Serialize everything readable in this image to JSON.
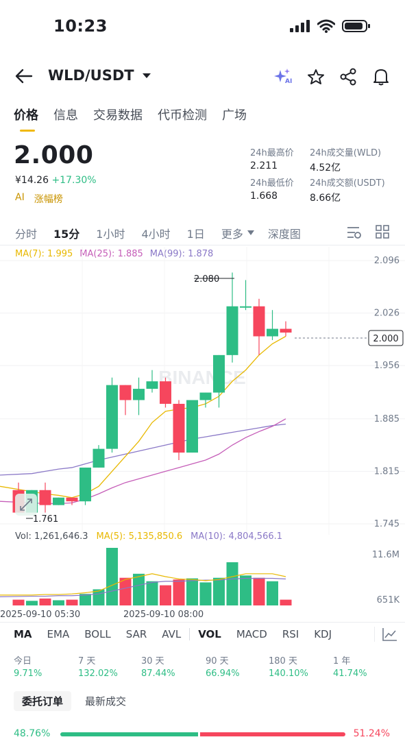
{
  "status_bar": {
    "time": "10:23"
  },
  "header": {
    "pair": "WLD/USDT",
    "back_icon": "arrow-left-icon",
    "dropdown_icon": "caret-down-icon",
    "actions": [
      "ai-sparkle-icon",
      "star-icon",
      "share-icon",
      "bell-icon"
    ],
    "ai_badge": "AI"
  },
  "tabs": [
    "价格",
    "信息",
    "交易数据",
    "代币检测",
    "广场"
  ],
  "price": {
    "last": "2.000",
    "cny": "¥14.26",
    "change": "+17.30%",
    "ai_label": "AI",
    "rank_label": "涨幅榜"
  },
  "stats": {
    "high_label": "24h最高价",
    "high": "2.211",
    "vol_label": "24h成交量(WLD)",
    "vol": "4.52亿",
    "low_label": "24h最低价",
    "low": "1.668",
    "amount_label": "24h成交额(USDT)",
    "amount": "8.66亿"
  },
  "time_tabs": [
    "分时",
    "15分",
    "1小时",
    "4小时",
    "1日",
    "更多",
    "深度图"
  ],
  "ma": {
    "ma7": "MA(7): 1.995",
    "ma25": "MA(25): 1.885",
    "ma99": "MA(99): 1.878"
  },
  "chart_data": {
    "type": "candlestick",
    "y_axis": [
      "2.096",
      "2.026",
      "1.956",
      "1.885",
      "1.815",
      "1.745"
    ],
    "ylim": [
      1.745,
      2.096
    ],
    "current_price_label": "2.000",
    "high_marker": "2.080",
    "low_marker": "1.761",
    "watermark": "BINANCE",
    "x_labels": [
      "2025-09-10 05:30",
      "2025-09-10 08:00"
    ],
    "candles": [
      {
        "o": 1.79,
        "h": 1.8,
        "l": 1.76,
        "c": 1.76
      },
      {
        "o": 1.76,
        "h": 1.79,
        "l": 1.76,
        "c": 1.79
      },
      {
        "o": 1.79,
        "h": 1.8,
        "l": 1.76,
        "c": 1.77
      },
      {
        "o": 1.77,
        "h": 1.78,
        "l": 1.77,
        "c": 1.78
      },
      {
        "o": 1.78,
        "h": 1.78,
        "l": 1.77,
        "c": 1.775
      },
      {
        "o": 1.775,
        "h": 1.82,
        "l": 1.77,
        "c": 1.82
      },
      {
        "o": 1.82,
        "h": 1.85,
        "l": 1.82,
        "c": 1.845
      },
      {
        "o": 1.845,
        "h": 1.94,
        "l": 1.84,
        "c": 1.93
      },
      {
        "o": 1.93,
        "h": 1.93,
        "l": 1.89,
        "c": 1.91
      },
      {
        "o": 1.91,
        "h": 1.94,
        "l": 1.89,
        "c": 1.925
      },
      {
        "o": 1.925,
        "h": 1.95,
        "l": 1.92,
        "c": 1.935
      },
      {
        "o": 1.935,
        "h": 1.94,
        "l": 1.9,
        "c": 1.905
      },
      {
        "o": 1.905,
        "h": 1.91,
        "l": 1.83,
        "c": 1.84
      },
      {
        "o": 1.84,
        "h": 1.91,
        "l": 1.84,
        "c": 1.91
      },
      {
        "o": 1.91,
        "h": 1.92,
        "l": 1.9,
        "c": 1.92
      },
      {
        "o": 1.92,
        "h": 1.97,
        "l": 1.9,
        "c": 1.97
      },
      {
        "o": 1.97,
        "h": 2.08,
        "l": 1.96,
        "c": 2.035
      },
      {
        "o": 2.035,
        "h": 2.07,
        "l": 2.03,
        "c": 2.035
      },
      {
        "o": 2.035,
        "h": 2.045,
        "l": 1.97,
        "c": 1.995
      },
      {
        "o": 1.995,
        "h": 2.03,
        "l": 1.99,
        "c": 2.005
      },
      {
        "o": 2.005,
        "h": 2.015,
        "l": 1.995,
        "c": 2.0
      }
    ],
    "ma7": [
      1.795,
      1.788,
      1.785,
      1.783,
      1.78,
      1.785,
      1.795,
      1.815,
      1.835,
      1.855,
      1.88,
      1.895,
      1.898,
      1.9,
      1.905,
      1.915,
      1.935,
      1.95,
      1.97,
      1.985,
      1.995
    ],
    "ma25": [
      1.775,
      1.773,
      1.772,
      1.772,
      1.773,
      1.778,
      1.785,
      1.793,
      1.8,
      1.805,
      1.81,
      1.815,
      1.82,
      1.825,
      1.83,
      1.838,
      1.85,
      1.86,
      1.868,
      1.875,
      1.885
    ],
    "ma99": [
      1.81,
      1.812,
      1.815,
      1.818,
      1.82,
      1.825,
      1.83,
      1.834,
      1.838,
      1.842,
      1.846,
      1.85,
      1.854,
      1.858,
      1.861,
      1.864,
      1.867,
      1.87,
      1.873,
      1.876,
      1.878
    ]
  },
  "volume": {
    "vol_label": "Vol: 1,261,646.3",
    "ma5_label": "MA(5): 5,135,850.6",
    "ma10_label": "MA(10): 4,804,566.1",
    "y_top": "11.6M",
    "y_bottom": "651K",
    "bars": [
      0.1,
      0.08,
      0.12,
      0.09,
      0.1,
      0.2,
      0.28,
      1.0,
      0.48,
      0.55,
      0.42,
      0.35,
      0.45,
      0.47,
      0.4,
      0.48,
      0.75,
      0.52,
      0.48,
      0.42,
      0.1
    ],
    "ma5": [
      0.18,
      0.18,
      0.19,
      0.19,
      0.2,
      0.22,
      0.25,
      0.35,
      0.45,
      0.5,
      0.55,
      0.5,
      0.46,
      0.45,
      0.43,
      0.45,
      0.5,
      0.55,
      0.55,
      0.55,
      0.5
    ],
    "ma10": [
      0.15,
      0.16,
      0.16,
      0.17,
      0.17,
      0.18,
      0.2,
      0.25,
      0.3,
      0.35,
      0.4,
      0.42,
      0.42,
      0.43,
      0.44,
      0.44,
      0.46,
      0.47,
      0.47,
      0.47,
      0.46
    ]
  },
  "indicator_tabs": [
    "MA",
    "EMA",
    "BOLL",
    "SAR",
    "AVL",
    "VOL",
    "MACD",
    "RSI",
    "KDJ"
  ],
  "performance": [
    {
      "label": "今日",
      "value": "9.71%"
    },
    {
      "label": "7 天",
      "value": "132.02%"
    },
    {
      "label": "30 天",
      "value": "87.44%"
    },
    {
      "label": "90 天",
      "value": "66.94%"
    },
    {
      "label": "180 天",
      "value": "140.10%"
    },
    {
      "label": "1 年",
      "value": "41.74%"
    }
  ],
  "order_tabs": [
    "委托订单",
    "最新成交"
  ],
  "order_ratio": {
    "buy": "48.76%",
    "sell": "51.24%",
    "buy_fraction": 0.4876
  }
}
